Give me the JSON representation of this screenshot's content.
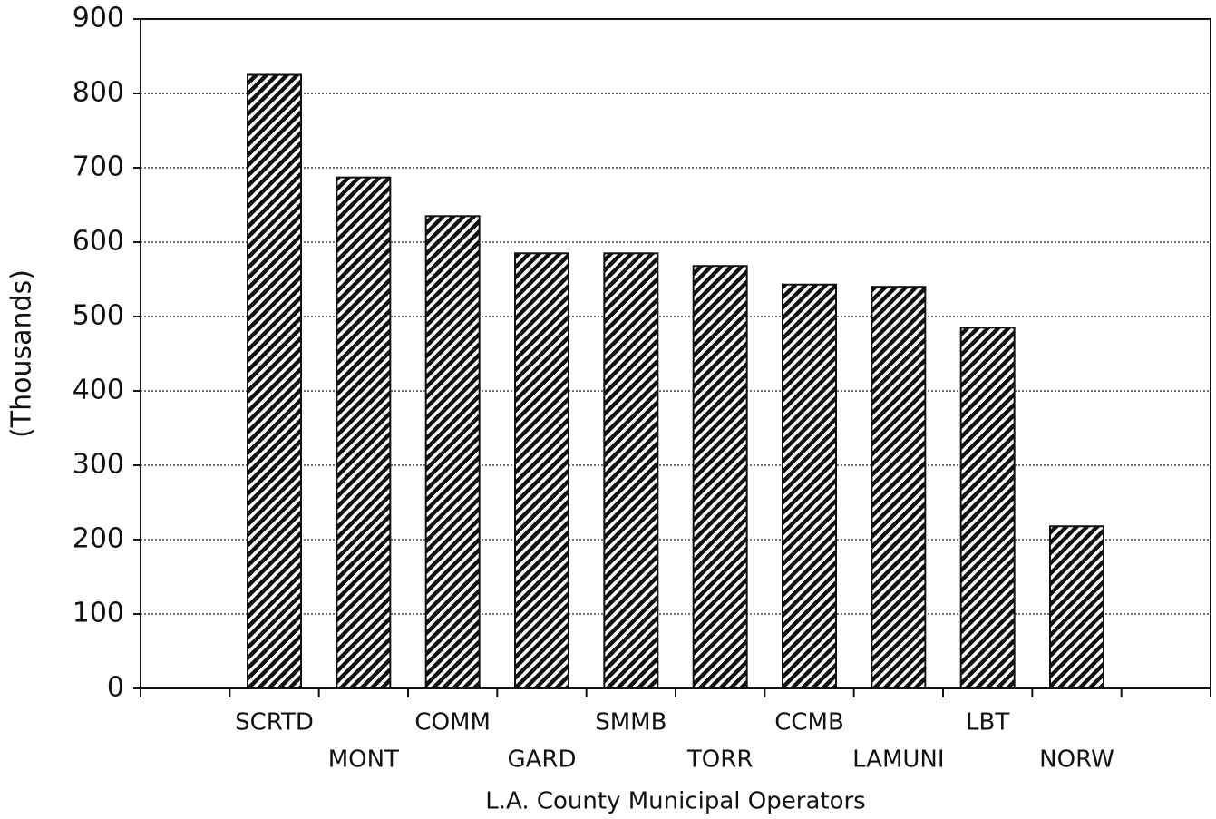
{
  "chart_data": {
    "type": "bar",
    "x_label": "L.A. County Municipal Operators",
    "y_label": "(Thousands)",
    "categories": [
      null,
      "SCRTD",
      "MONT",
      "COMM",
      "GARD",
      "SMMB",
      "TORR",
      "CCMB",
      "LAMUNI",
      "LBT",
      "NORW",
      null
    ],
    "values": [
      null,
      825,
      687,
      635,
      585,
      585,
      568,
      543,
      540,
      485,
      218,
      null
    ],
    "color": "#111111",
    "ylim": [
      0,
      900
    ],
    "yticks": [
      0,
      100,
      200,
      300,
      400,
      500,
      600,
      700,
      800,
      900
    ],
    "grid": true
  }
}
